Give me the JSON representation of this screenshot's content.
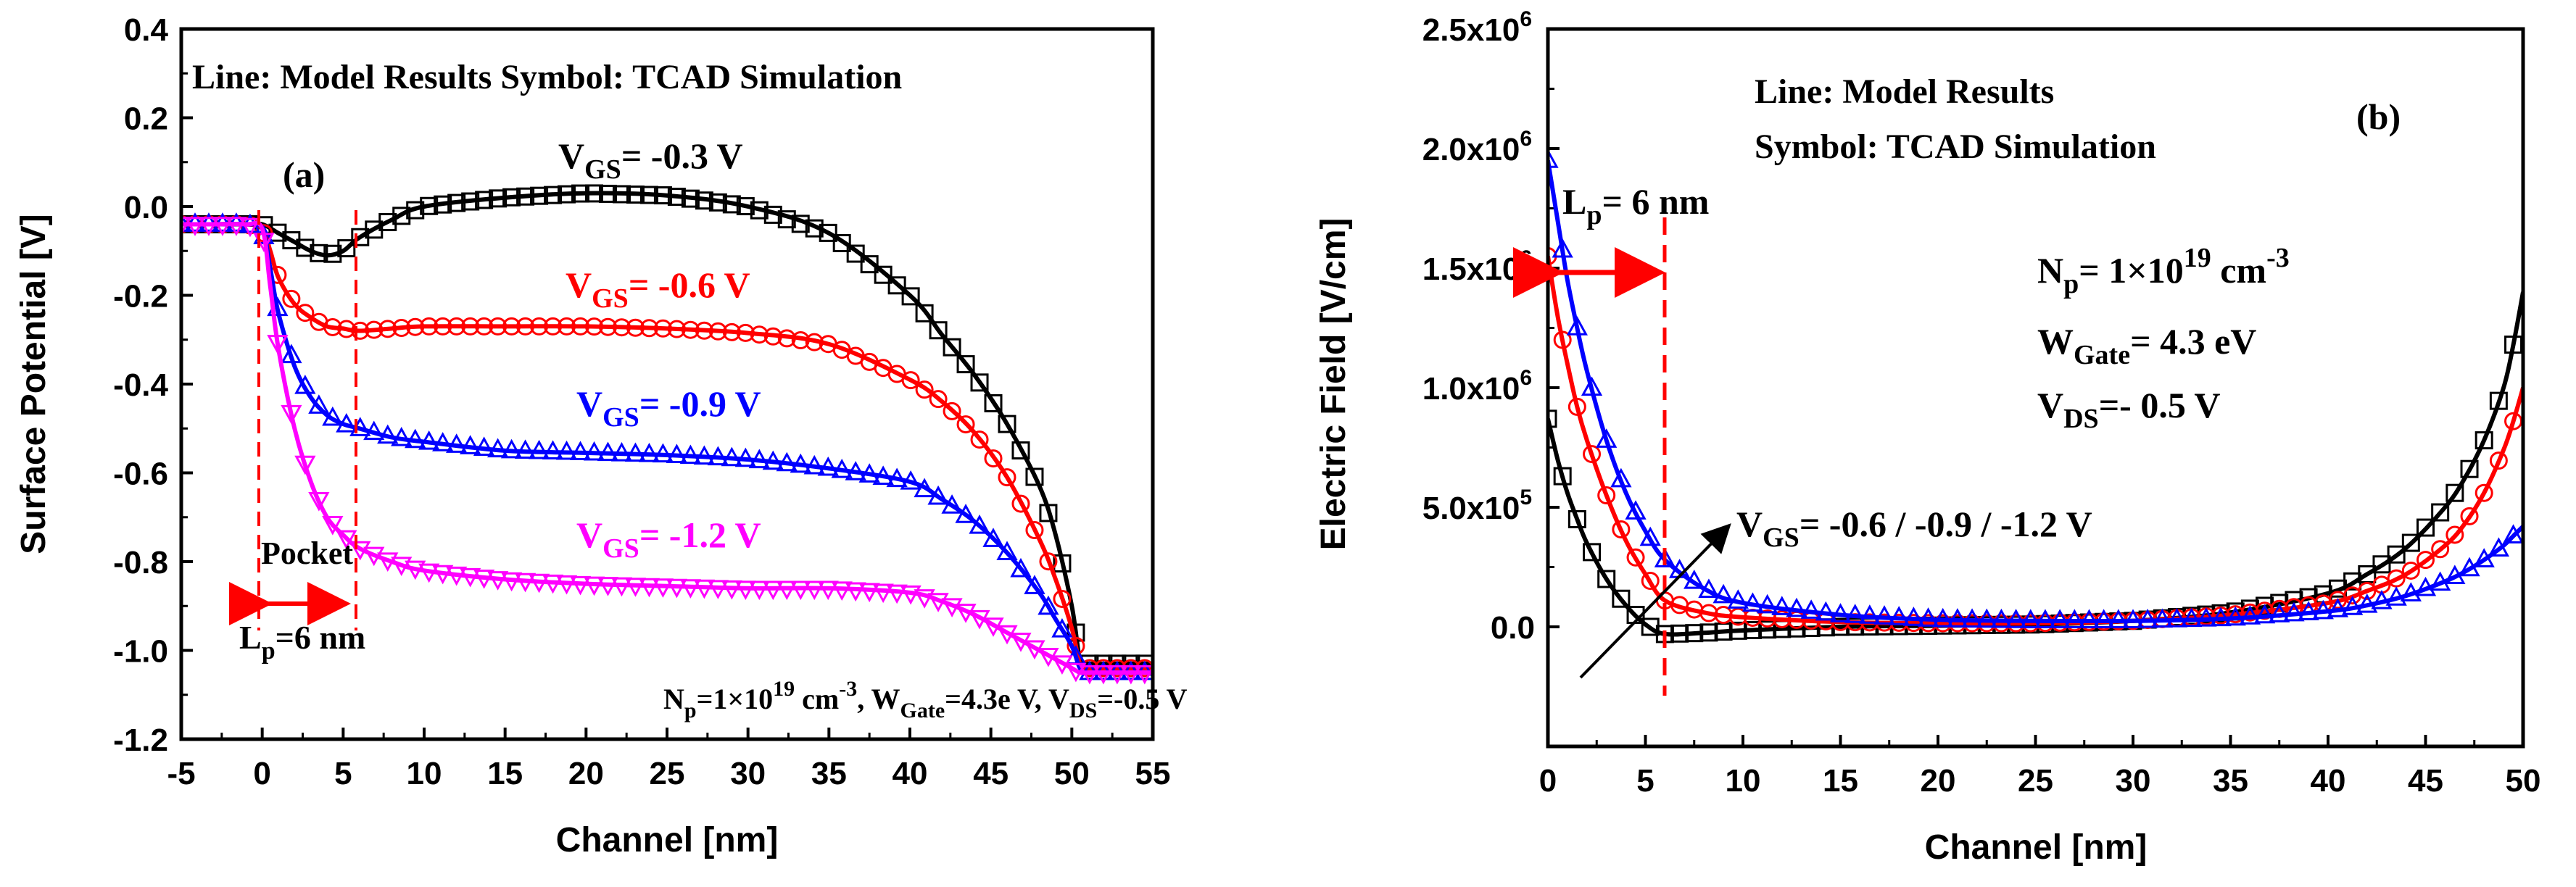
{
  "chart_data": [
    {
      "type": "line",
      "panel_label": "(a)",
      "xlabel": "Channel [nm]",
      "ylabel": "Surface Potential [V]",
      "xlim": [
        -5,
        55
      ],
      "ylim": [
        -1.2,
        0.4
      ],
      "xticks": [
        "-5",
        "0",
        "5",
        "10",
        "15",
        "20",
        "25",
        "30",
        "35",
        "40",
        "45",
        "50",
        "55"
      ],
      "yticks": [
        "0.4",
        "0.2",
        "0.0",
        "-0.2",
        "-0.4",
        "-0.6",
        "-0.8",
        "-1.0",
        "-1.2"
      ],
      "legend_text": "Line: Model Results    Symbol: TCAD Simulation",
      "pocket_label": "Pocket",
      "lp_label": {
        "pre": "L",
        "sub": "p",
        "post": "=6 nm"
      },
      "params_label": {
        "np_pre": "N",
        "np_sub": "p",
        "np_mid": "=1×10",
        "np_sup": "19",
        "np_post": " cm",
        "np_sup2": "-3",
        "w_pre": ",  W",
        "w_sub": "Gate",
        "w_post": "=4.3e V",
        "v_pre": ",  V",
        "v_sub": "DS",
        "v_post": "=-0.5 V"
      },
      "series": [
        {
          "name": "VGS = -0.3 V",
          "label_pre": "V",
          "label_sub": "GS",
          "label_post": "= -0.3 V",
          "color": "#000000",
          "marker": "square",
          "x": [
            -5,
            -3,
            -1,
            0,
            1,
            2,
            3,
            4,
            5,
            6,
            8,
            10,
            15,
            20,
            25,
            30,
            35,
            40,
            42,
            44,
            46,
            48,
            49,
            50,
            50.5,
            51,
            53,
            55
          ],
          "y": [
            -0.04,
            -0.04,
            -0.04,
            -0.04,
            -0.06,
            -0.08,
            -0.1,
            -0.11,
            -0.1,
            -0.07,
            -0.03,
            0.0,
            0.02,
            0.03,
            0.025,
            0.0,
            -0.06,
            -0.2,
            -0.29,
            -0.38,
            -0.49,
            -0.63,
            -0.74,
            -0.9,
            -1.02,
            -1.03,
            -1.03,
            -1.03
          ]
        },
        {
          "name": "VGS = -0.6 V",
          "label_pre": "V",
          "label_sub": "GS",
          "label_post": "= -0.6 V",
          "color": "#ff0000",
          "marker": "circle",
          "x": [
            -5,
            -3,
            -1,
            0,
            0.5,
            1,
            2,
            3,
            4,
            5,
            6,
            8,
            10,
            15,
            20,
            25,
            30,
            35,
            40,
            42,
            44,
            46,
            48,
            49,
            50,
            50.5,
            51,
            53,
            55
          ],
          "y": [
            -0.04,
            -0.04,
            -0.04,
            -0.05,
            -0.1,
            -0.16,
            -0.22,
            -0.25,
            -0.27,
            -0.275,
            -0.28,
            -0.275,
            -0.27,
            -0.27,
            -0.27,
            -0.275,
            -0.285,
            -0.31,
            -0.39,
            -0.44,
            -0.51,
            -0.61,
            -0.75,
            -0.84,
            -0.95,
            -1.03,
            -1.04,
            -1.04,
            -1.04
          ]
        },
        {
          "name": "VGS = -0.9 V",
          "label_pre": "V",
          "label_sub": "GS",
          "label_post": "= -0.9 V",
          "color": "#0000ff",
          "marker": "triangle",
          "x": [
            -5,
            -3,
            -1,
            0,
            0.5,
            1,
            2,
            3,
            4,
            5,
            6,
            8,
            10,
            15,
            20,
            25,
            30,
            35,
            40,
            42,
            44,
            46,
            48,
            49,
            50,
            50.5,
            51,
            53,
            55
          ],
          "y": [
            -0.04,
            -0.04,
            -0.04,
            -0.05,
            -0.14,
            -0.24,
            -0.36,
            -0.43,
            -0.47,
            -0.49,
            -0.5,
            -0.52,
            -0.53,
            -0.55,
            -0.555,
            -0.56,
            -0.57,
            -0.59,
            -0.62,
            -0.66,
            -0.71,
            -0.78,
            -0.87,
            -0.93,
            -0.99,
            -1.04,
            -1.05,
            -1.05,
            -1.05
          ]
        },
        {
          "name": "VGS = -1.2 V",
          "label_pre": "V",
          "label_sub": "GS",
          "label_post": "= -1.2 V",
          "color": "#ff00ff",
          "marker": "inverted-triangle",
          "x": [
            -5,
            -3,
            -1,
            0,
            0.5,
            1,
            2,
            3,
            4,
            5,
            6,
            8,
            10,
            15,
            20,
            25,
            30,
            35,
            40,
            42,
            44,
            46,
            48,
            49,
            50,
            50.5,
            51,
            53,
            55
          ],
          "y": [
            -0.04,
            -0.04,
            -0.04,
            -0.05,
            -0.18,
            -0.32,
            -0.5,
            -0.62,
            -0.7,
            -0.74,
            -0.77,
            -0.8,
            -0.82,
            -0.84,
            -0.85,
            -0.855,
            -0.86,
            -0.86,
            -0.87,
            -0.89,
            -0.92,
            -0.96,
            -1.0,
            -1.02,
            -1.04,
            -1.05,
            -1.05,
            -1.05,
            -1.05
          ]
        }
      ]
    },
    {
      "type": "line",
      "panel_label": "(b)",
      "xlabel": "Channel [nm]",
      "ylabel": "Electric Field [V/cm]",
      "xlim": [
        0,
        50
      ],
      "ylim": [
        -500000,
        2500000
      ],
      "xticks": [
        "0",
        "5",
        "10",
        "15",
        "20",
        "25",
        "30",
        "35",
        "40",
        "45",
        "50"
      ],
      "yticks": [
        {
          "mant": "0.0",
          "exp": ""
        },
        {
          "mant": "5.0x10",
          "exp": "5"
        },
        {
          "mant": "1.0x10",
          "exp": "6"
        },
        {
          "mant": "1.5x10",
          "exp": "6"
        },
        {
          "mant": "2.0x10",
          "exp": "6"
        },
        {
          "mant": "2.5x10",
          "exp": "6"
        }
      ],
      "legend_line1": "Line: Model Results",
      "legend_line2": "Symbol: TCAD Simulation",
      "lp_label": {
        "pre": "L",
        "sub": "p",
        "post": "= 6 nm"
      },
      "np_label": {
        "pre": "N",
        "sub": "p",
        "post": "= 1×10",
        "sup": "19",
        "post2": " cm",
        "sup2": "-3"
      },
      "wgate_label": {
        "pre": "W",
        "sub": "Gate",
        "post": "= 4.3 eV"
      },
      "vds_label": {
        "pre": "V",
        "sub": "DS",
        "post": "=- 0.5 V"
      },
      "vgs_label": {
        "pre": "V",
        "sub": "GS",
        "post": "= -0.6 / -0.9 / -1.2 V"
      },
      "series": [
        {
          "name": "VGS = -0.6 V",
          "color": "#000000",
          "marker": "square",
          "x": [
            0,
            0.5,
            1,
            1.5,
            2,
            3,
            4,
            5,
            6,
            8,
            10,
            15,
            20,
            25,
            30,
            35,
            40,
            42,
            44,
            46,
            47,
            48,
            49,
            49.5,
            50
          ],
          "y": [
            870000,
            700000,
            560000,
            450000,
            350000,
            200000,
            90000,
            10000,
            -30000,
            -25000,
            -15000,
            0,
            5000,
            10000,
            25000,
            60000,
            140000,
            220000,
            330000,
            500000,
            620000,
            780000,
            1000000,
            1180000,
            1400000
          ]
        },
        {
          "name": "VGS = -0.9 V",
          "color": "#ff0000",
          "marker": "circle",
          "x": [
            0,
            0.5,
            1,
            1.5,
            2,
            3,
            4,
            5,
            6,
            8,
            10,
            15,
            20,
            25,
            30,
            35,
            40,
            42,
            44,
            46,
            47,
            48,
            49,
            49.5,
            50
          ],
          "y": [
            1550000,
            1300000,
            1100000,
            920000,
            780000,
            550000,
            360000,
            220000,
            110000,
            60000,
            40000,
            20000,
            15000,
            15000,
            25000,
            50000,
            100000,
            150000,
            220000,
            340000,
            430000,
            560000,
            740000,
            860000,
            1000000
          ]
        },
        {
          "name": "VGS = -1.2 V",
          "color": "#0000ff",
          "marker": "triangle",
          "x": [
            0,
            0.5,
            1,
            1.5,
            2,
            3,
            4,
            5,
            6,
            8,
            10,
            15,
            20,
            25,
            30,
            35,
            40,
            42,
            44,
            46,
            47,
            48,
            49,
            49.5,
            50
          ],
          "y": [
            1950000,
            1700000,
            1450000,
            1250000,
            1070000,
            780000,
            560000,
            400000,
            280000,
            160000,
            100000,
            50000,
            30000,
            25000,
            25000,
            35000,
            65000,
            90000,
            130000,
            190000,
            230000,
            280000,
            340000,
            380000,
            420000
          ]
        }
      ]
    }
  ]
}
